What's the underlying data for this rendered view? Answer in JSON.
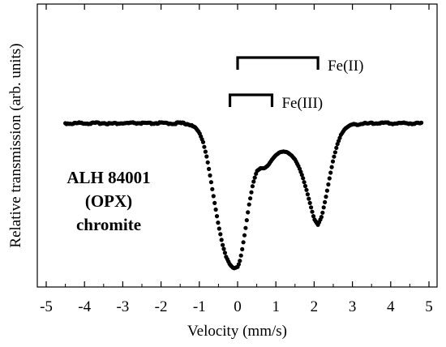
{
  "chart_data": {
    "type": "scatter",
    "title": "",
    "xlabel": "Velocity (mm/s)",
    "ylabel": "Relative transmission (arb. units)",
    "xlim": [
      -5,
      5
    ],
    "x_ticks": [
      -5,
      -4,
      -3,
      -2,
      -1,
      0,
      1,
      2,
      3,
      4,
      5
    ],
    "x_tick_labels": [
      "-5",
      "-4",
      "-3",
      "-2",
      "-1",
      "0",
      "1",
      "2",
      "3",
      "4",
      "5"
    ],
    "y_tick_labels_shown": false,
    "grid": false,
    "sample_label": [
      "ALH 84001",
      "(OPX)",
      "chromite"
    ],
    "components": [
      {
        "name": "Fe(II)",
        "x_start": 0.0,
        "x_end": 2.1
      },
      {
        "name": "Fe(III)",
        "x_start": -0.2,
        "x_end": 0.9
      }
    ],
    "series": [
      {
        "x": [
          -4.5,
          -4.3,
          -4.1,
          -3.9,
          -3.7,
          -3.5,
          -3.3,
          -3.1,
          -2.9,
          -2.7,
          -2.5,
          -2.3,
          -2.1,
          -1.9,
          -1.7,
          -1.5,
          -1.3,
          -1.2,
          -1.1,
          -1.0,
          -0.9,
          -0.8,
          -0.7,
          -0.6,
          -0.5,
          -0.4,
          -0.3,
          -0.2,
          -0.1,
          0.0,
          0.05,
          0.1,
          0.2,
          0.3,
          0.4,
          0.5,
          0.6,
          0.7,
          0.8,
          0.9,
          1.0,
          1.1,
          1.2,
          1.3,
          1.4,
          1.5,
          1.6,
          1.7,
          1.8,
          1.9,
          2.0,
          2.1,
          2.2,
          2.3,
          2.4,
          2.5,
          2.6,
          2.7,
          2.8,
          2.9,
          3.0,
          3.2,
          3.4,
          3.6,
          3.8,
          4.0,
          4.2,
          4.4,
          4.6,
          4.8
        ],
        "values": [
          0.0,
          0.002,
          -0.003,
          0.001,
          0.0,
          -0.002,
          0.003,
          0.0,
          0.001,
          -0.002,
          0.0,
          0.002,
          -0.001,
          0.0,
          0.001,
          -0.001,
          0.004,
          0.012,
          0.03,
          0.065,
          0.13,
          0.24,
          0.39,
          0.55,
          0.7,
          0.83,
          0.92,
          0.975,
          1.0,
          0.99,
          0.96,
          0.9,
          0.74,
          0.56,
          0.42,
          0.33,
          0.31,
          0.31,
          0.29,
          0.25,
          0.22,
          0.2,
          0.195,
          0.2,
          0.22,
          0.25,
          0.3,
          0.37,
          0.46,
          0.56,
          0.66,
          0.7,
          0.64,
          0.52,
          0.38,
          0.25,
          0.15,
          0.08,
          0.04,
          0.02,
          0.01,
          0.004,
          0.002,
          0.0,
          -0.002,
          0.001,
          0.0,
          -0.001,
          0.001,
          0.0
        ]
      }
    ]
  }
}
